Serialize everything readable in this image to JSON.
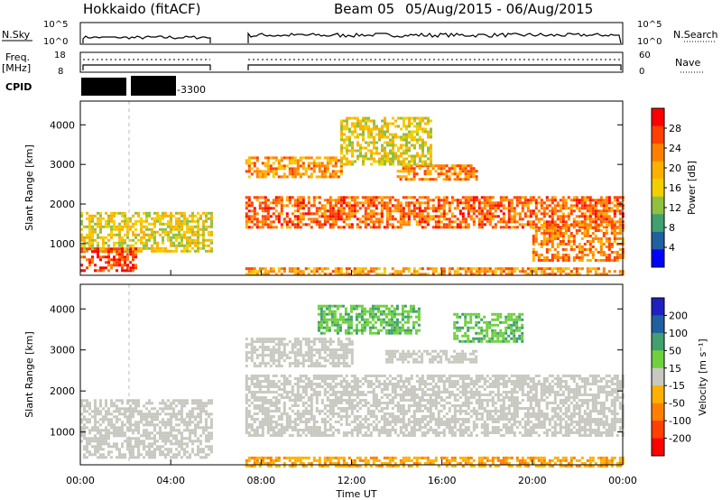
{
  "header": {
    "station": "Hokkaido (fitACF)",
    "beam": "Beam 05",
    "date_range": "05/Aug/2015 - 06/Aug/2015"
  },
  "status_panels": {
    "nsky": {
      "label": "N.Sky",
      "left_ticks": [
        "10^5",
        "10^0"
      ],
      "right_ticks": [
        "10^5",
        "10^0"
      ],
      "right_label": "N.Search"
    },
    "freq": {
      "label": "Freq.",
      "unit": "[MHz]",
      "left_ticks": [
        "18",
        "8"
      ],
      "right_ticks": [
        "60",
        "0"
      ],
      "right_label": "Nave"
    },
    "cpid": {
      "label": "CPID",
      "text": "-3300"
    }
  },
  "colorbars": {
    "power": {
      "label": "Power [dB]",
      "ticks": [
        "28",
        "24",
        "20",
        "16",
        "12",
        "8",
        "4"
      ],
      "colors": [
        "#ff0000",
        "#ff4000",
        "#ff8000",
        "#ffb000",
        "#f0d000",
        "#90c040",
        "#40a070",
        "#2060a0",
        "#0000ff"
      ]
    },
    "velocity": {
      "label": "Velocity [m s⁻¹]",
      "ticks": [
        "200",
        "100",
        "50",
        "15",
        "-15",
        "-50",
        "-100",
        "-200"
      ],
      "colors": [
        "#2020c0",
        "#2060a0",
        "#40a070",
        "#70d040",
        "#c8c8c0",
        "#ffb000",
        "#ff8000",
        "#ff4000",
        "#ff0000"
      ]
    }
  },
  "chart_data": [
    {
      "type": "heatmap",
      "name": "power",
      "ylabel": "Slant Range [km]",
      "ylim": [
        200,
        4600
      ],
      "yticks": [
        1000,
        2000,
        3000,
        4000
      ],
      "xlim": [
        0,
        24
      ],
      "bands": [
        {
          "t0": 0.0,
          "t1": 5.8,
          "r0": 800,
          "r1": 1800,
          "value": 14
        },
        {
          "t0": 0.0,
          "t1": 2.5,
          "r0": 300,
          "r1": 900,
          "value": 26
        },
        {
          "t0": 7.3,
          "t1": 24.0,
          "r0": 1400,
          "r1": 2200,
          "value": 24
        },
        {
          "t0": 7.3,
          "t1": 11.5,
          "r0": 2700,
          "r1": 3200,
          "value": 20
        },
        {
          "t0": 14.0,
          "t1": 17.5,
          "r0": 2600,
          "r1": 3000,
          "value": 22
        },
        {
          "t0": 11.5,
          "t1": 15.5,
          "r0": 3000,
          "r1": 4200,
          "value": 14
        },
        {
          "t0": 20.0,
          "t1": 24.0,
          "r0": 600,
          "r1": 1500,
          "value": 22
        },
        {
          "t0": 7.3,
          "t1": 24.0,
          "r0": 200,
          "r1": 400,
          "value": 20
        }
      ]
    },
    {
      "type": "heatmap",
      "name": "velocity",
      "ylabel": "Slant Range [km]",
      "xlabel": "Time UT",
      "ylim": [
        200,
        4600
      ],
      "yticks": [
        1000,
        2000,
        3000,
        4000
      ],
      "xlim": [
        0,
        24
      ],
      "xticks": [
        "00:00",
        "04:00",
        "08:00",
        "12:00",
        "16:00",
        "20:00",
        "00:00"
      ],
      "bands": [
        {
          "t0": 0.0,
          "t1": 5.8,
          "r0": 400,
          "r1": 1800,
          "value": 0
        },
        {
          "t0": 7.3,
          "t1": 24.0,
          "r0": 900,
          "r1": 2400,
          "value": 0
        },
        {
          "t0": 7.3,
          "t1": 12.0,
          "r0": 2600,
          "r1": 3300,
          "value": 0
        },
        {
          "t0": 13.5,
          "t1": 17.5,
          "r0": 2700,
          "r1": 3000,
          "value": 0
        },
        {
          "t0": 10.5,
          "t1": 15.0,
          "r0": 3400,
          "r1": 4100,
          "value": 30
        },
        {
          "t0": 16.5,
          "t1": 19.5,
          "r0": 3200,
          "r1": 3900,
          "value": 30
        },
        {
          "t0": 7.3,
          "t1": 24.0,
          "r0": 200,
          "r1": 400,
          "value": -30
        }
      ]
    }
  ]
}
